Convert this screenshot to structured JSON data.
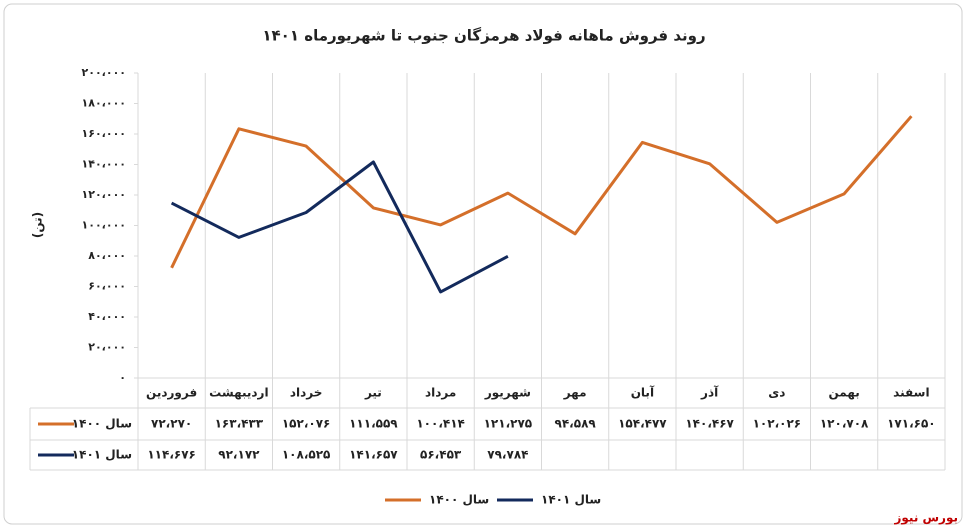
{
  "chart_data": {
    "type": "line",
    "title": "روند فروش ماهانه فولاد هرمزگان جنوب تا شهریورماه ۱۴۰۱",
    "y_label": "(تن)",
    "annotation": "بورس نیوز",
    "categories": [
      "فروردین",
      "اردیبهشت",
      "خرداد",
      "تیر",
      "مرداد",
      "شهریور",
      "مهر",
      "آبان",
      "آذر",
      "دی",
      "بهمن",
      "اسفند"
    ],
    "series": [
      {
        "name": "سال ۱۴۰۰",
        "color": "#d46f2a",
        "values": [
          72270,
          163433,
          152076,
          111559,
          100414,
          121275,
          94589,
          154477,
          140467,
          102026,
          120708,
          171650
        ],
        "value_labels": [
          "۷۲،۲۷۰",
          "۱۶۳،۴۳۳",
          "۱۵۲،۰۷۶",
          "۱۱۱،۵۵۹",
          "۱۰۰،۴۱۴",
          "۱۲۱،۲۷۵",
          "۹۴،۵۸۹",
          "۱۵۴،۴۷۷",
          "۱۴۰،۴۶۷",
          "۱۰۲،۰۲۶",
          "۱۲۰،۷۰۸",
          "۱۷۱،۶۵۰"
        ]
      },
      {
        "name": "سال ۱۴۰۱",
        "color": "#132a5c",
        "values": [
          114676,
          92172,
          108525,
          141657,
          56453,
          79784,
          null,
          null,
          null,
          null,
          null,
          null
        ],
        "value_labels": [
          "۱۱۴،۶۷۶",
          "۹۲،۱۷۲",
          "۱۰۸،۵۲۵",
          "۱۴۱،۶۵۷",
          "۵۶،۴۵۳",
          "۷۹،۷۸۴",
          null,
          null,
          null,
          null,
          null,
          null
        ]
      }
    ],
    "ylim": [
      0,
      200000
    ],
    "yticks": [
      {
        "value": 0,
        "label": "۰"
      },
      {
        "value": 20000,
        "label": "۲۰،۰۰۰"
      },
      {
        "value": 40000,
        "label": "۴۰،۰۰۰"
      },
      {
        "value": 60000,
        "label": "۶۰،۰۰۰"
      },
      {
        "value": 80000,
        "label": "۸۰،۰۰۰"
      },
      {
        "value": 100000,
        "label": "۱۰۰،۰۰۰"
      },
      {
        "value": 120000,
        "label": "۱۲۰،۰۰۰"
      },
      {
        "value": 140000,
        "label": "۱۴۰،۰۰۰"
      },
      {
        "value": 160000,
        "label": "۱۶۰،۰۰۰"
      },
      {
        "value": 180000,
        "label": "۱۸۰،۰۰۰"
      },
      {
        "value": 200000,
        "label": "۲۰۰،۰۰۰"
      }
    ],
    "legend": "bottom"
  }
}
